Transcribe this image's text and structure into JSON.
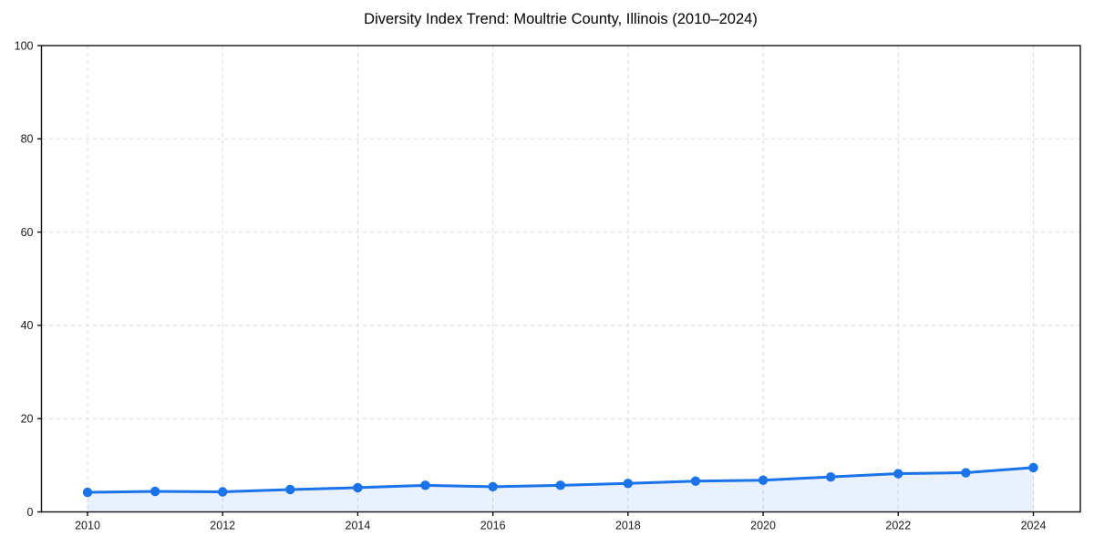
{
  "chart_data": {
    "type": "area",
    "title": "Diversity Index Trend: Moultrie County, Illinois (2010–2024)",
    "x": [
      2010,
      2011,
      2012,
      2013,
      2014,
      2015,
      2016,
      2017,
      2018,
      2019,
      2020,
      2021,
      2022,
      2023,
      2024
    ],
    "values": [
      4.2,
      4.4,
      4.3,
      4.8,
      5.2,
      5.7,
      5.4,
      5.7,
      6.1,
      6.6,
      6.8,
      7.5,
      8.2,
      8.4,
      9.5
    ],
    "xlabel": "",
    "ylabel": "",
    "ylim": [
      0,
      100
    ],
    "yticks": [
      0,
      20,
      40,
      60,
      80,
      100
    ],
    "xticks": [
      2010,
      2012,
      2014,
      2016,
      2018,
      2020,
      2022,
      2024
    ],
    "grid": true,
    "grid_style": "dashed",
    "legend": "none",
    "marker": "circle",
    "colors": {
      "line": "#1a73e8",
      "marker": "#1a73e8",
      "fill": "rgba(26,115,232,0.10)",
      "grid": "#dbdbdb",
      "spine": "#111111",
      "tick_label": "#1a1a1a",
      "title": "#000000",
      "background": "#ffffff"
    }
  }
}
